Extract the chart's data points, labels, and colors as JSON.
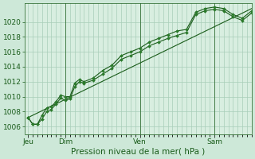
{
  "bg_color": "#cde8d8",
  "plot_bg_color": "#d8eee0",
  "grid_color": "#a8cdb8",
  "line_color": "#1a5c1a",
  "marker_color": "#2a7a2a",
  "axis_label": "Pression niveau de la mer( hPa )",
  "x_ticks_labels": [
    "Jeu",
    "Dim",
    "Ven",
    "Sam"
  ],
  "x_ticks_positions": [
    0,
    48,
    144,
    240
  ],
  "xlim": [
    -4,
    288
  ],
  "ylim": [
    1005.0,
    1022.5
  ],
  "yticks": [
    1006,
    1008,
    1010,
    1012,
    1014,
    1016,
    1018,
    1020
  ],
  "series1_x": [
    0,
    6,
    12,
    18,
    24,
    30,
    36,
    42,
    48,
    54,
    60,
    66,
    72,
    84,
    96,
    108,
    120,
    132,
    144,
    156,
    168,
    180,
    192,
    204,
    216,
    228,
    240,
    252,
    264,
    276,
    288
  ],
  "series1_y": [
    1007.2,
    1006.3,
    1006.3,
    1007.5,
    1008.5,
    1008.7,
    1009.3,
    1010.2,
    1010.0,
    1010.0,
    1011.8,
    1012.3,
    1012.0,
    1012.5,
    1013.5,
    1014.2,
    1015.5,
    1016.0,
    1016.5,
    1017.3,
    1017.8,
    1018.3,
    1018.8,
    1019.0,
    1021.3,
    1021.8,
    1022.0,
    1021.8,
    1021.0,
    1020.5,
    1021.5
  ],
  "series2_x": [
    0,
    6,
    12,
    18,
    24,
    30,
    36,
    42,
    48,
    54,
    60,
    66,
    72,
    84,
    96,
    108,
    120,
    132,
    144,
    156,
    168,
    180,
    192,
    204,
    216,
    228,
    240,
    252,
    264,
    276,
    288
  ],
  "series2_y": [
    1007.2,
    1006.3,
    1006.3,
    1007.0,
    1008.0,
    1008.3,
    1009.0,
    1009.8,
    1009.5,
    1009.7,
    1011.3,
    1012.0,
    1011.8,
    1012.2,
    1013.0,
    1013.8,
    1015.0,
    1015.5,
    1016.0,
    1016.8,
    1017.3,
    1017.8,
    1018.2,
    1018.6,
    1021.0,
    1021.5,
    1021.7,
    1021.5,
    1020.7,
    1020.2,
    1021.2
  ],
  "trend_x": [
    0,
    288
  ],
  "trend_y": [
    1007.2,
    1021.8
  ],
  "vline_positions": [
    48,
    144,
    240
  ],
  "label_fontsize": 7.5,
  "tick_fontsize": 6.5
}
